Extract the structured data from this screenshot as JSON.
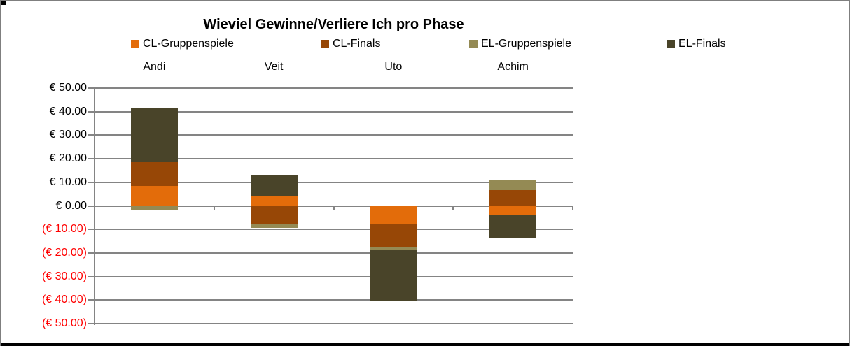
{
  "chart": {
    "title": "Wieviel Gewinne/Verliere Ich pro Phase",
    "legend": [
      {
        "label": "CL-Gruppenspiele",
        "color": "#E36C0A"
      },
      {
        "label": "CL-Finals",
        "color": "#974706"
      },
      {
        "label": "EL-Gruppenspiele",
        "color": "#948A54"
      },
      {
        "label": "EL-Finals",
        "color": "#494429"
      }
    ],
    "y_axis_labels": [
      {
        "text": "€ 50.00",
        "color": "#000000"
      },
      {
        "text": "€ 40.00",
        "color": "#000000"
      },
      {
        "text": "€ 30.00",
        "color": "#000000"
      },
      {
        "text": "€ 20.00",
        "color": "#000000"
      },
      {
        "text": "€ 10.00",
        "color": "#000000"
      },
      {
        "text": "€ 0.00",
        "color": "#000000"
      },
      {
        "text": "(€ 10.00)",
        "color": "#FF0000"
      },
      {
        "text": "(€ 20.00)",
        "color": "#FF0000"
      },
      {
        "text": "(€ 30.00)",
        "color": "#FF0000"
      },
      {
        "text": "(€ 40.00)",
        "color": "#FF0000"
      },
      {
        "text": "(€ 50.00)",
        "color": "#FF0000"
      }
    ],
    "colors": {
      "gridline": "#848484",
      "negative_label": "#FF0000",
      "positive_label": "#000000"
    }
  },
  "chart_data": {
    "type": "bar",
    "stacked": true,
    "title": "Wieviel Gewinne/Verliere Ich pro Phase",
    "categories": [
      "Andi",
      "Veit",
      "Uto",
      "Achim"
    ],
    "series": [
      {
        "name": "CL-Gruppenspiele",
        "color": "#E36C0A",
        "values": [
          8.6,
          4.0,
          -8.0,
          -3.6
        ]
      },
      {
        "name": "CL-Finals",
        "color": "#974706",
        "values": [
          10.0,
          -7.7,
          -9.5,
          6.8
        ]
      },
      {
        "name": "EL-Gruppenspiele",
        "color": "#948A54",
        "values": [
          -1.5,
          -1.6,
          -1.4,
          4.4
        ]
      },
      {
        "name": "EL-Finals",
        "color": "#494429",
        "values": [
          22.8,
          9.3,
          -21.4,
          -9.9
        ]
      }
    ],
    "ylabel": "",
    "xlabel": "",
    "ylim": [
      -50,
      50
    ],
    "y_tick_step": 10,
    "grid": true,
    "legend_position": "top",
    "category_labels_position": "top"
  }
}
